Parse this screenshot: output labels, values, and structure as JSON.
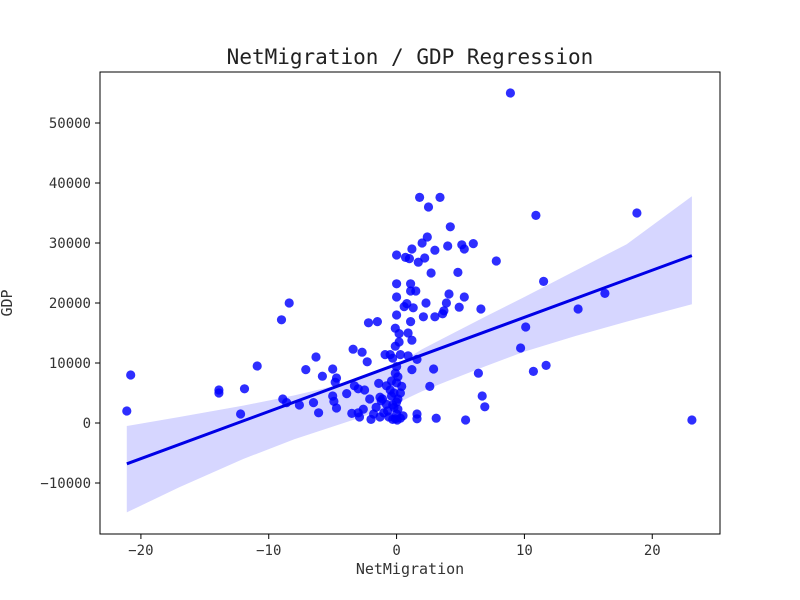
{
  "chart_data": {
    "type": "scatter",
    "title": "NetMigration / GDP Regression",
    "xlabel": "NetMigration",
    "ylabel": "GDP",
    "xlim": [
      -23.2,
      25.3
    ],
    "ylim": [
      -18500,
      58500
    ],
    "xticks": [
      -20,
      -10,
      0,
      10,
      20
    ],
    "xtick_labels": [
      "−20",
      "−10",
      "0",
      "10",
      "20"
    ],
    "yticks": [
      -10000,
      0,
      10000,
      20000,
      30000,
      40000,
      50000
    ],
    "ytick_labels": [
      "−10000",
      "0",
      "10000",
      "20000",
      "30000",
      "40000",
      "50000"
    ],
    "grid": false,
    "legend": "none",
    "colors": {
      "points": "#0000ff",
      "line": "#0000e6",
      "band": "#d6d6ff"
    },
    "regression": {
      "x": [
        -21.1,
        23.1
      ],
      "y": [
        -6800,
        27900
      ]
    },
    "confidence_band": {
      "x": [
        -21.1,
        -17,
        -12,
        -8,
        -5,
        -3,
        -1,
        0,
        1,
        2,
        4,
        7,
        10,
        14,
        18,
        23.1
      ],
      "upper": [
        -500,
        1000,
        2900,
        4600,
        6100,
        7300,
        8700,
        9800,
        11000,
        12300,
        14500,
        17800,
        21000,
        25400,
        29800,
        37800
      ],
      "lower": [
        -14900,
        -10700,
        -6000,
        -2700,
        -600,
        800,
        2300,
        3200,
        4300,
        5300,
        7000,
        9500,
        11900,
        14500,
        16900,
        19800
      ]
    },
    "points": [
      [
        -21.1,
        2000
      ],
      [
        -20.8,
        8000
      ],
      [
        -13.9,
        5500
      ],
      [
        -13.9,
        5000
      ],
      [
        -12.2,
        1500
      ],
      [
        -11.9,
        5700
      ],
      [
        -10.9,
        9500
      ],
      [
        -9.0,
        17200
      ],
      [
        -8.9,
        4000
      ],
      [
        -8.6,
        3400
      ],
      [
        -8.4,
        20000
      ],
      [
        -7.6,
        3000
      ],
      [
        -7.1,
        8900
      ],
      [
        -6.5,
        3400
      ],
      [
        -6.3,
        11000
      ],
      [
        -6.1,
        1700
      ],
      [
        -5.8,
        7800
      ],
      [
        -5.0,
        9000
      ],
      [
        -5.0,
        4500
      ],
      [
        -4.9,
        3600
      ],
      [
        -4.8,
        6800
      ],
      [
        -4.7,
        7500
      ],
      [
        -4.7,
        2500
      ],
      [
        -3.9,
        4900
      ],
      [
        -3.5,
        1600
      ],
      [
        -3.4,
        12300
      ],
      [
        -3.3,
        6200
      ],
      [
        -3.0,
        1700
      ],
      [
        -3.0,
        5700
      ],
      [
        -2.9,
        1000
      ],
      [
        -2.7,
        11800
      ],
      [
        -2.6,
        2300
      ],
      [
        -2.5,
        5500
      ],
      [
        -2.3,
        10200
      ],
      [
        -2.2,
        16700
      ],
      [
        -2.1,
        4000
      ],
      [
        -2.0,
        600
      ],
      [
        -1.8,
        1500
      ],
      [
        -1.6,
        2600
      ],
      [
        -1.5,
        16900
      ],
      [
        -1.4,
        6600
      ],
      [
        -1.3,
        4300
      ],
      [
        -1.3,
        1000
      ],
      [
        -1.2,
        3700
      ],
      [
        -1.1,
        4000
      ],
      [
        -1.0,
        1700
      ],
      [
        -0.9,
        11400
      ],
      [
        -0.8,
        6200
      ],
      [
        -0.8,
        3100
      ],
      [
        -0.7,
        2000
      ],
      [
        -0.6,
        1000
      ],
      [
        -0.5,
        5500
      ],
      [
        -0.5,
        11400
      ],
      [
        -0.4,
        7000
      ],
      [
        -0.4,
        4500
      ],
      [
        -0.3,
        3000
      ],
      [
        -0.3,
        10800
      ],
      [
        -0.3,
        600
      ],
      [
        -0.2,
        2600
      ],
      [
        -0.2,
        5000
      ],
      [
        -0.1,
        8300
      ],
      [
        -0.1,
        12800
      ],
      [
        -0.1,
        700
      ],
      [
        -0.1,
        15800
      ],
      [
        0.0,
        1500
      ],
      [
        0.0,
        3500
      ],
      [
        0.0,
        6700
      ],
      [
        0.0,
        9400
      ],
      [
        0.0,
        18000
      ],
      [
        0.0,
        28000
      ],
      [
        0.0,
        23200
      ],
      [
        0.0,
        21000
      ],
      [
        0.05,
        500
      ],
      [
        0.1,
        2300
      ],
      [
        0.1,
        4000
      ],
      [
        0.1,
        7700
      ],
      [
        0.2,
        14900
      ],
      [
        0.2,
        13500
      ],
      [
        0.3,
        800
      ],
      [
        0.3,
        5000
      ],
      [
        0.3,
        11400
      ],
      [
        0.4,
        6100
      ],
      [
        0.5,
        1200
      ],
      [
        0.6,
        19400
      ],
      [
        0.7,
        27600
      ],
      [
        0.8,
        19900
      ],
      [
        0.9,
        11200
      ],
      [
        0.9,
        15000
      ],
      [
        1.0,
        27400
      ],
      [
        1.1,
        22000
      ],
      [
        1.1,
        23200
      ],
      [
        1.1,
        16900
      ],
      [
        1.2,
        29000
      ],
      [
        1.2,
        13800
      ],
      [
        1.2,
        8900
      ],
      [
        1.3,
        19200
      ],
      [
        1.5,
        22000
      ],
      [
        1.6,
        10600
      ],
      [
        1.6,
        1500
      ],
      [
        1.6,
        700
      ],
      [
        1.7,
        26800
      ],
      [
        1.8,
        37600
      ],
      [
        2.0,
        30000
      ],
      [
        2.1,
        17700
      ],
      [
        2.2,
        27500
      ],
      [
        2.3,
        20000
      ],
      [
        2.4,
        31000
      ],
      [
        2.5,
        36000
      ],
      [
        2.6,
        6100
      ],
      [
        2.7,
        25000
      ],
      [
        2.9,
        9000
      ],
      [
        3.0,
        28800
      ],
      [
        3.0,
        17700
      ],
      [
        3.1,
        800
      ],
      [
        3.4,
        37600
      ],
      [
        3.6,
        18200
      ],
      [
        3.7,
        18700
      ],
      [
        3.9,
        20000
      ],
      [
        4.0,
        29500
      ],
      [
        4.1,
        21500
      ],
      [
        4.2,
        32700
      ],
      [
        4.8,
        25100
      ],
      [
        4.9,
        19300
      ],
      [
        5.1,
        29700
      ],
      [
        5.3,
        29000
      ],
      [
        5.3,
        21000
      ],
      [
        5.4,
        500
      ],
      [
        6.0,
        29900
      ],
      [
        6.4,
        8300
      ],
      [
        6.6,
        19000
      ],
      [
        6.7,
        4500
      ],
      [
        6.9,
        2700
      ],
      [
        7.8,
        27000
      ],
      [
        8.9,
        55000
      ],
      [
        9.7,
        12500
      ],
      [
        10.1,
        16000
      ],
      [
        10.7,
        8600
      ],
      [
        10.9,
        34600
      ],
      [
        11.5,
        23600
      ],
      [
        11.7,
        9600
      ],
      [
        14.2,
        19000
      ],
      [
        16.3,
        21600
      ],
      [
        18.8,
        35000
      ],
      [
        23.1,
        500
      ]
    ]
  }
}
